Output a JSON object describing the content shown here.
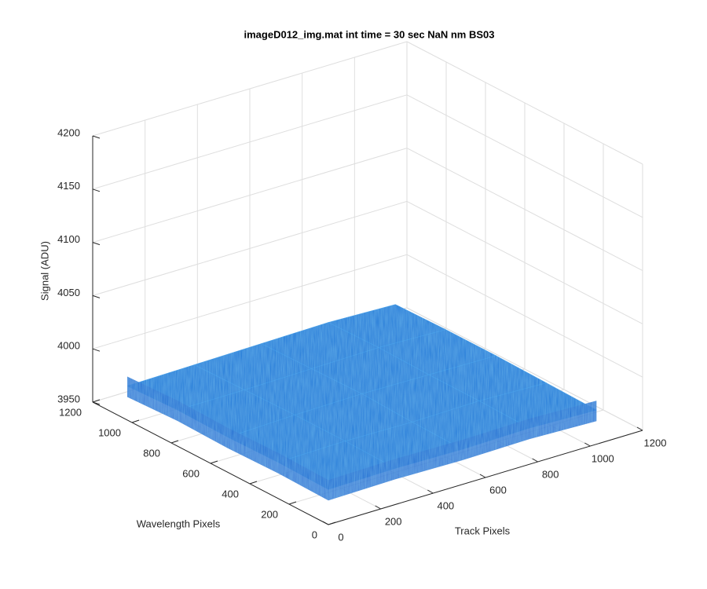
{
  "chart_data": {
    "type": "surface",
    "title": "imageD012_img.mat int time = 30 sec  NaN nm BS03",
    "xlabel": "Track Pixels",
    "ylabel": "Wavelength Pixels",
    "zlabel": "Signal (ADU)",
    "x": [
      0,
      256,
      512,
      768,
      1024
    ],
    "y": [
      0,
      256,
      512,
      768,
      1024
    ],
    "z": [
      [
        3983,
        3984,
        3983,
        3984,
        3982
      ],
      [
        3984,
        3985,
        3984,
        3985,
        3983
      ],
      [
        3983,
        3985,
        3986,
        3985,
        3984
      ],
      [
        3984,
        3984,
        3985,
        3986,
        3984
      ],
      [
        3982,
        3983,
        3984,
        3985,
        3983
      ]
    ],
    "xlim": [
      0,
      1200
    ],
    "ylim": [
      0,
      1200
    ],
    "zlim": [
      3950,
      4200
    ],
    "xticks": [
      0,
      200,
      400,
      600,
      800,
      1000,
      1200
    ],
    "yticks": [
      0,
      200,
      400,
      600,
      800,
      1000,
      1200
    ],
    "zticks": [
      3950,
      4000,
      4050,
      4100,
      4150,
      4200
    ],
    "grid": true,
    "color": "#1f78d8"
  }
}
